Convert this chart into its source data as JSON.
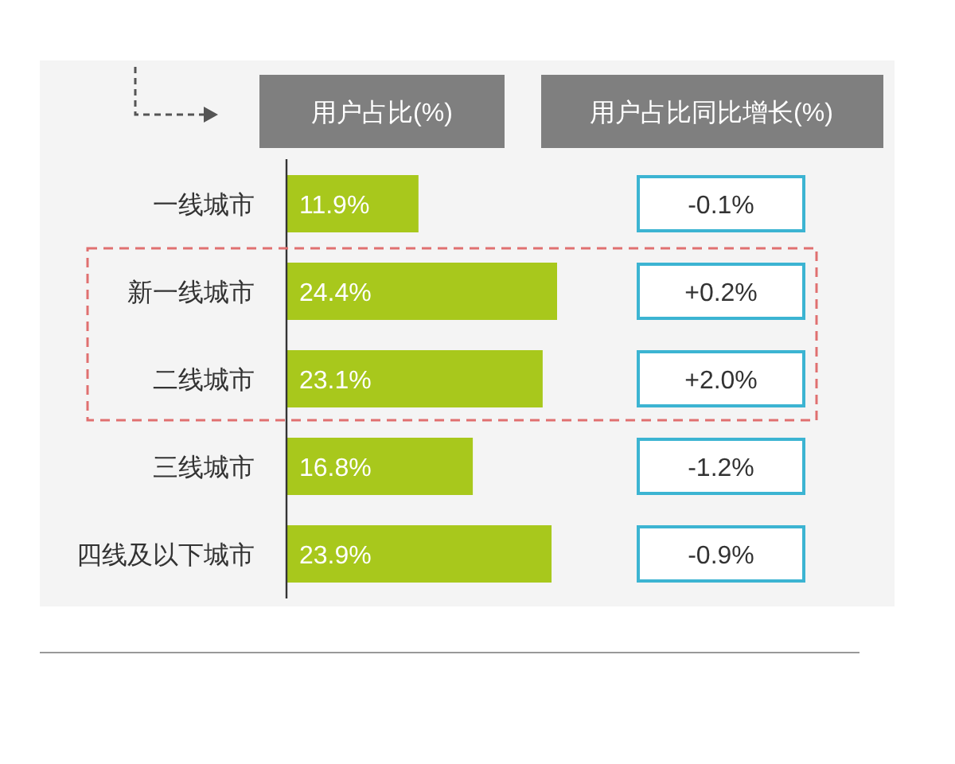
{
  "chart_data": [
    {
      "type": "bar",
      "orientation": "horizontal",
      "title": "用户占比(%)",
      "categories": [
        "一线城市",
        "新一线城市",
        "二线城市",
        "三线城市",
        "四线及以下城市"
      ],
      "values": [
        11.9,
        24.4,
        23.1,
        16.8,
        23.9
      ],
      "color": "#a8c81c",
      "value_labels": [
        "11.9%",
        "24.4%",
        "23.1%",
        "16.8%",
        "23.9%"
      ]
    },
    {
      "type": "other",
      "title": "用户占比同比增长(%)",
      "color": "#3cb4d2",
      "values": [
        -0.1,
        0.2,
        2.0,
        -1.2,
        -0.9
      ],
      "value_labels": [
        "-0.1%",
        "+0.2%",
        "+2.0%",
        "-1.2%",
        "-0.9%"
      ]
    }
  ]
}
